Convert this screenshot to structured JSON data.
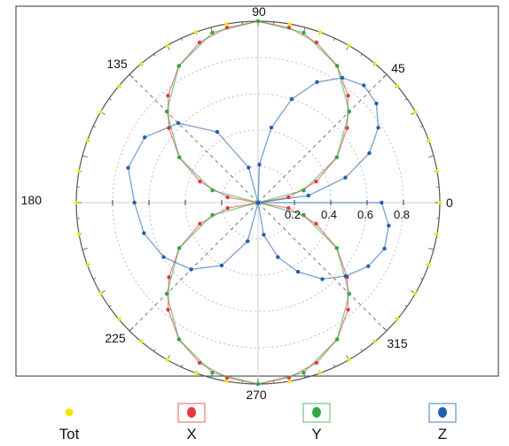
{
  "chart_data": {
    "type": "polar-scatter-line",
    "title": "",
    "angle_unit": "degrees",
    "angle_labels": [
      "0",
      "45",
      "90",
      "135",
      "180",
      "225",
      "270",
      "315"
    ],
    "radial_ticks": [
      0.2,
      0.4,
      0.6,
      0.8
    ],
    "radial_tick_labels": [
      "0.2",
      "0.4",
      "0.6",
      "0.8"
    ],
    "r_range": [
      0,
      1.0
    ],
    "grid": true,
    "legend_position": "bottom",
    "series": [
      {
        "name": "Tot",
        "color": "#f2e600",
        "marker": "yellow-dot",
        "connect": false,
        "points": [
          {
            "theta": 0,
            "r": 1.0
          },
          {
            "theta": 10,
            "r": 1.0
          },
          {
            "theta": 20,
            "r": 1.0
          },
          {
            "theta": 30,
            "r": 1.0
          },
          {
            "theta": 40,
            "r": 1.0
          },
          {
            "theta": 50,
            "r": 1.0
          },
          {
            "theta": 60,
            "r": 1.0
          },
          {
            "theta": 70,
            "r": 1.0
          },
          {
            "theta": 80,
            "r": 1.0
          },
          {
            "theta": 90,
            "r": 1.0
          },
          {
            "theta": 100,
            "r": 1.0
          },
          {
            "theta": 110,
            "r": 1.0
          },
          {
            "theta": 120,
            "r": 1.0
          },
          {
            "theta": 130,
            "r": 1.0
          },
          {
            "theta": 140,
            "r": 1.0
          },
          {
            "theta": 150,
            "r": 1.0
          },
          {
            "theta": 160,
            "r": 1.0
          },
          {
            "theta": 170,
            "r": 1.0
          },
          {
            "theta": 180,
            "r": 1.0
          },
          {
            "theta": 190,
            "r": 1.0
          },
          {
            "theta": 200,
            "r": 1.0
          },
          {
            "theta": 210,
            "r": 1.0
          },
          {
            "theta": 220,
            "r": 1.0
          },
          {
            "theta": 230,
            "r": 1.0
          },
          {
            "theta": 240,
            "r": 1.0
          },
          {
            "theta": 250,
            "r": 1.0
          },
          {
            "theta": 260,
            "r": 1.0
          },
          {
            "theta": 270,
            "r": 1.0
          },
          {
            "theta": 280,
            "r": 1.0
          },
          {
            "theta": 290,
            "r": 1.0
          },
          {
            "theta": 300,
            "r": 1.0
          },
          {
            "theta": 310,
            "r": 1.0
          },
          {
            "theta": 320,
            "r": 1.0
          },
          {
            "theta": 330,
            "r": 1.0
          },
          {
            "theta": 340,
            "r": 1.0
          },
          {
            "theta": 350,
            "r": 1.0
          }
        ]
      },
      {
        "name": "X",
        "color": "#e8383d",
        "marker": "red-dot",
        "connect": true,
        "points": [
          {
            "theta": 0,
            "r": 0.0
          },
          {
            "theta": 10,
            "r": 0.17
          },
          {
            "theta": 20,
            "r": 0.34
          },
          {
            "theta": 30,
            "r": 0.5
          },
          {
            "theta": 40,
            "r": 0.64
          },
          {
            "theta": 50,
            "r": 0.77
          },
          {
            "theta": 60,
            "r": 0.87
          },
          {
            "theta": 70,
            "r": 0.94
          },
          {
            "theta": 80,
            "r": 0.98
          },
          {
            "theta": 90,
            "r": 1.0
          },
          {
            "theta": 100,
            "r": 0.98
          },
          {
            "theta": 110,
            "r": 0.94
          },
          {
            "theta": 120,
            "r": 0.87
          },
          {
            "theta": 130,
            "r": 0.77
          },
          {
            "theta": 140,
            "r": 0.64
          },
          {
            "theta": 150,
            "r": 0.5
          },
          {
            "theta": 160,
            "r": 0.34
          },
          {
            "theta": 170,
            "r": 0.17
          },
          {
            "theta": 180,
            "r": 0.0
          },
          {
            "theta": 190,
            "r": 0.17
          },
          {
            "theta": 200,
            "r": 0.34
          },
          {
            "theta": 210,
            "r": 0.5
          },
          {
            "theta": 220,
            "r": 0.64
          },
          {
            "theta": 230,
            "r": 0.77
          },
          {
            "theta": 240,
            "r": 0.87
          },
          {
            "theta": 250,
            "r": 0.94
          },
          {
            "theta": 260,
            "r": 0.98
          },
          {
            "theta": 270,
            "r": 1.0
          },
          {
            "theta": 280,
            "r": 0.98
          },
          {
            "theta": 290,
            "r": 0.94
          },
          {
            "theta": 300,
            "r": 0.87
          },
          {
            "theta": 310,
            "r": 0.77
          },
          {
            "theta": 320,
            "r": 0.64
          },
          {
            "theta": 330,
            "r": 0.5
          },
          {
            "theta": 340,
            "r": 0.34
          },
          {
            "theta": 350,
            "r": 0.17
          }
        ]
      },
      {
        "name": "Y",
        "color": "#2faa44",
        "marker": "green-dot",
        "connect": true,
        "points": [
          {
            "theta": 0,
            "r": 0.0
          },
          {
            "theta": 15,
            "r": 0.26
          },
          {
            "theta": 30,
            "r": 0.5
          },
          {
            "theta": 45,
            "r": 0.71
          },
          {
            "theta": 60,
            "r": 0.87
          },
          {
            "theta": 75,
            "r": 0.97
          },
          {
            "theta": 90,
            "r": 1.0
          },
          {
            "theta": 105,
            "r": 0.97
          },
          {
            "theta": 120,
            "r": 0.87
          },
          {
            "theta": 135,
            "r": 0.71
          },
          {
            "theta": 150,
            "r": 0.5
          },
          {
            "theta": 165,
            "r": 0.26
          },
          {
            "theta": 180,
            "r": 0.0
          },
          {
            "theta": 195,
            "r": 0.26
          },
          {
            "theta": 210,
            "r": 0.5
          },
          {
            "theta": 225,
            "r": 0.71
          },
          {
            "theta": 240,
            "r": 0.87
          },
          {
            "theta": 255,
            "r": 0.97
          },
          {
            "theta": 270,
            "r": 1.0
          },
          {
            "theta": 285,
            "r": 0.97
          },
          {
            "theta": 300,
            "r": 0.87
          },
          {
            "theta": 315,
            "r": 0.71
          },
          {
            "theta": 330,
            "r": 0.5
          },
          {
            "theta": 345,
            "r": 0.26
          }
        ]
      },
      {
        "name": "Z",
        "color": "#1f5fb4",
        "marker": "blue-dot",
        "connect": true,
        "points": [
          {
            "theta": 0,
            "r": 0.0
          },
          {
            "theta": 8,
            "r": 0.28
          },
          {
            "theta": 16,
            "r": 0.5
          },
          {
            "theta": 24,
            "r": 0.67
          },
          {
            "theta": 32,
            "r": 0.78
          },
          {
            "theta": 40,
            "r": 0.85
          },
          {
            "theta": 48,
            "r": 0.87
          },
          {
            "theta": 56,
            "r": 0.83
          },
          {
            "theta": 64,
            "r": 0.74
          },
          {
            "theta": 72,
            "r": 0.6
          },
          {
            "theta": 80,
            "r": 0.42
          },
          {
            "theta": 88,
            "r": 0.21
          },
          {
            "theta": 96,
            "r": 0.0
          },
          {
            "theta": 105,
            "r": 0.2
          },
          {
            "theta": 120,
            "r": 0.45
          },
          {
            "theta": 135,
            "r": 0.62
          },
          {
            "theta": 150,
            "r": 0.72
          },
          {
            "theta": 165,
            "r": 0.74
          },
          {
            "theta": 180,
            "r": 0.68
          },
          {
            "theta": 195,
            "r": 0.65
          },
          {
            "theta": 210,
            "r": 0.6
          },
          {
            "theta": 225,
            "r": 0.52
          },
          {
            "theta": 240,
            "r": 0.4
          },
          {
            "theta": 255,
            "r": 0.22
          },
          {
            "theta": 270,
            "r": 0.0
          },
          {
            "theta": 280,
            "r": 0.18
          },
          {
            "theta": 290,
            "r": 0.32
          },
          {
            "theta": 300,
            "r": 0.44
          },
          {
            "theta": 310,
            "r": 0.55
          },
          {
            "theta": 320,
            "r": 0.63
          },
          {
            "theta": 330,
            "r": 0.7
          },
          {
            "theta": 340,
            "r": 0.74
          },
          {
            "theta": 350,
            "r": 0.73
          },
          {
            "theta": 360,
            "r": 0.68
          }
        ]
      }
    ]
  }
}
